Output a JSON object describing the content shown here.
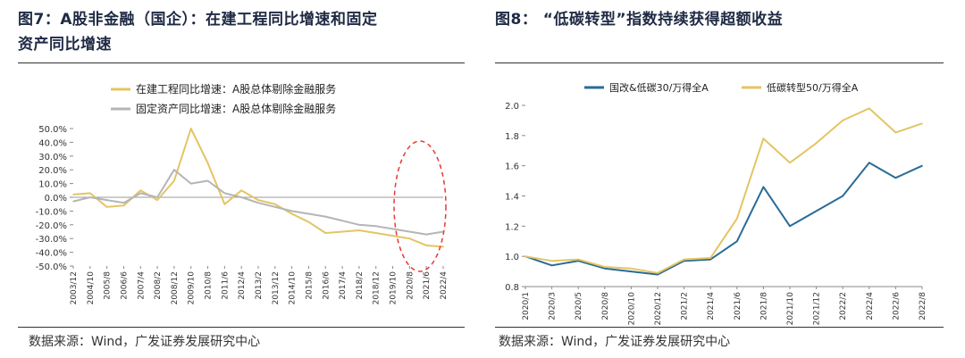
{
  "left_panel": {
    "title_line1": "图7：A股非金融（国企）：在建工程同比增速和固定",
    "title_line2": "资产同比增速",
    "source": "数据来源：Wind，广发证券发展研究中心"
  },
  "right_panel": {
    "title": "图8：  “低碳转型”指数持续获得超额收益",
    "source": "数据来源：Wind，广发证券发展研究中心"
  },
  "colors": {
    "gold": "#e3c563",
    "gray": "#b5b5b5",
    "blue": "#2a6b96",
    "annotation": "#e53935"
  },
  "chart_data": [
    {
      "type": "line",
      "title": "",
      "x": [
        "2003/12",
        "2004/10",
        "2005/8",
        "2006/6",
        "2007/4",
        "2008/2",
        "2008/12",
        "2009/10",
        "2010/8",
        "2011/6",
        "2012/4",
        "2013/2",
        "2013/12",
        "2014/10",
        "2015/8",
        "2016/6",
        "2017/4",
        "2018/2",
        "2018/12",
        "2019/10",
        "2020/8",
        "2021/6",
        "2022/4"
      ],
      "tick_labels": [
        "2003/12",
        "2004/10",
        "2005/8",
        "2006/6",
        "2007/4",
        "2008/2",
        "2008/12",
        "2009/10",
        "2010/8",
        "2011/6",
        "2012/4",
        "2013/2",
        "2013/12",
        "2014/10",
        "2015/8",
        "2016/6",
        "2017/4",
        "2018/2",
        "2018/12",
        "2019/10",
        "2020/8",
        "2021/6",
        "2022/4"
      ],
      "y_tick_labels": [
        "50.0%",
        "40.0%",
        "30.0%",
        "20.0%",
        "10.0%",
        "0.0%",
        "-10.0%",
        "-20.0%",
        "-30.0%",
        "-40.0%",
        "-50.0%"
      ],
      "ylim": [
        -50,
        50
      ],
      "series": [
        {
          "name": "在建工程同比增速：A股总体剔除金融服务",
          "color": "#e3c563",
          "values": [
            2,
            3,
            -7,
            -6,
            5,
            -2,
            12,
            50,
            25,
            -5,
            5,
            -2,
            -5,
            -12,
            -18,
            -26,
            -25,
            -24,
            -26,
            -28,
            -30,
            -35,
            -36
          ]
        },
        {
          "name": "固定资产同比增速：A股总体剔除金融服务",
          "color": "#b5b5b5",
          "values": [
            -3,
            0,
            -2,
            -4,
            3,
            0,
            20,
            10,
            12,
            3,
            0,
            -4,
            -7,
            -10,
            -12,
            -14,
            -17,
            -20,
            -21,
            -23,
            -25,
            -27,
            -25
          ]
        }
      ],
      "annotation": "red-dashed-ellipse around 2020–2022"
    },
    {
      "type": "line",
      "title": "",
      "x": [
        "2020/1",
        "2020/3",
        "2020/5",
        "2020/8",
        "2020/10",
        "2020/12",
        "2021/2",
        "2021/4",
        "2021/6",
        "2021/8",
        "2021/10",
        "2021/12",
        "2022/2",
        "2022/4",
        "2022/6",
        "2022/8"
      ],
      "tick_labels": [
        "2020/1",
        "2020/3",
        "2020/5",
        "2020/8",
        "2020/10",
        "2020/12",
        "2021/2",
        "2021/4",
        "2021/6",
        "2021/8",
        "2021/10",
        "2021/12",
        "2022/2",
        "2022/4",
        "2022/6",
        "2022/8"
      ],
      "y_tick_labels": [
        "2.0",
        "1.8",
        "1.6",
        "1.4",
        "1.2",
        "1.0",
        "0.8"
      ],
      "ylim": [
        0.8,
        2.0
      ],
      "series": [
        {
          "name": "国改&低碳30/万得全A",
          "color": "#2a6b96",
          "values": [
            1.0,
            0.94,
            0.97,
            0.92,
            0.9,
            0.88,
            0.97,
            0.98,
            1.1,
            1.46,
            1.2,
            1.3,
            1.4,
            1.62,
            1.52,
            1.6
          ]
        },
        {
          "name": "低碳转型50/万得全A",
          "color": "#e3c563",
          "values": [
            1.0,
            0.97,
            0.98,
            0.93,
            0.92,
            0.89,
            0.98,
            0.99,
            1.25,
            1.78,
            1.62,
            1.75,
            1.9,
            1.98,
            1.82,
            1.88
          ]
        }
      ]
    }
  ]
}
